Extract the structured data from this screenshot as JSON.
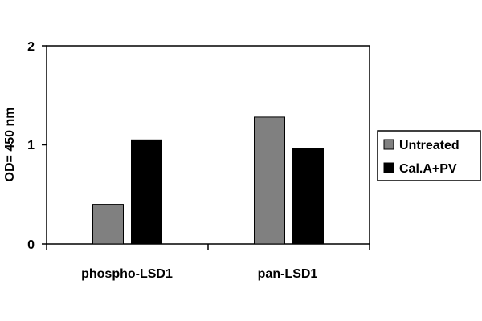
{
  "chart_data": {
    "type": "bar",
    "title": "",
    "xlabel": "",
    "ylabel": "OD= 450 nm",
    "ylim": [
      0,
      2
    ],
    "yticks": [
      "0",
      "1",
      "2"
    ],
    "categories": [
      "phospho-LSD1",
      "pan-LSD1"
    ],
    "series": [
      {
        "name": "Untreated",
        "values": [
          0.4,
          1.28
        ],
        "color": "#808080"
      },
      {
        "name": "Cal.A+PV",
        "values": [
          1.05,
          0.96
        ],
        "color": "#000000"
      }
    ],
    "grid": false,
    "legend": "right"
  }
}
